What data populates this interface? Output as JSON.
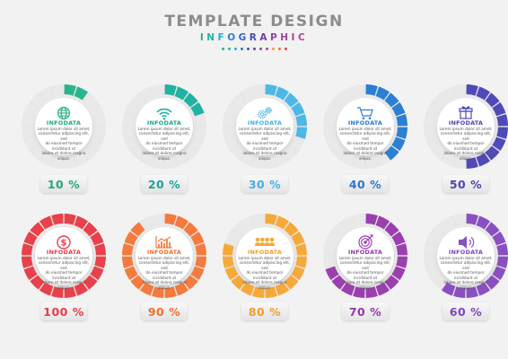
{
  "header": {
    "title": "TEMPLATE DESIGN",
    "subtitle": "INFOGRAPHIC",
    "dots": [
      "#2bb673",
      "#2bb6a8",
      "#29abe2",
      "#2e6fd3",
      "#4a4ab5",
      "#6b3fa0",
      "#8e44ad",
      "#c0399b",
      "#e8a33a",
      "#f26b3a",
      "#e8414b"
    ]
  },
  "items": [
    {
      "id": "globe",
      "icon": "globe-icon",
      "title": "INFODATA",
      "desc": [
        "Lorem ipsum dolor sit amet,",
        "consectetur adipiscing elit, sed",
        "do eiusmod tempor incididunt ut",
        "labore et dolore magna aliqua."
      ],
      "percent_label": "10 %",
      "fraction": 0.1,
      "color": "#2bb58e",
      "text_color": "#25a77e"
    },
    {
      "id": "wifi",
      "icon": "wifi-icon",
      "title": "INFODATA",
      "desc": [
        "Lorem ipsum dolor sit amet,",
        "consectetur adipiscing elit, sed",
        "do eiusmod tempor incididunt ut",
        "labore et dolore magna aliqua."
      ],
      "percent_label": "20 %",
      "fraction": 0.2,
      "color": "#20b2a2",
      "text_color": "#1ea394"
    },
    {
      "id": "gears",
      "icon": "gears-icon",
      "title": "INFODATA",
      "desc": [
        "Lorem ipsum dolor sit amet,",
        "consectetur adipiscing elit, sed",
        "do eiusmod tempor incididunt ut",
        "labore et dolore magna aliqua."
      ],
      "percent_label": "30 %",
      "fraction": 0.3,
      "color": "#4cb8e8",
      "text_color": "#43b0e3"
    },
    {
      "id": "cart",
      "icon": "shopping-cart-icon",
      "title": "INFODATA",
      "desc": [
        "Lorem ipsum dolor sit amet,",
        "consectetur adipiscing elit, sed",
        "do eiusmod tempor incididunt ut",
        "labore et dolore magna aliqua."
      ],
      "percent_label": "40 %",
      "fraction": 0.4,
      "color": "#2d7fd3",
      "text_color": "#2a78cc"
    },
    {
      "id": "gift",
      "icon": "gift-icon",
      "title": "INFODATA",
      "desc": [
        "Lorem ipsum dolor sit amet,",
        "consectetur adipiscing elit, sed",
        "do eiusmod tempor incididunt ut",
        "labore et dolore magna aliqua."
      ],
      "percent_label": "50 %",
      "fraction": 0.5,
      "color": "#4f4ab8",
      "text_color": "#4b46ad"
    },
    {
      "id": "dollar",
      "icon": "dollar-icon",
      "title": "INFODATA",
      "desc": [
        "Lorem ipsum dolor sit amet,",
        "consectetur adipiscing elit, sed",
        "do eiusmod tempor incididunt ut",
        "labore et dolore magna aliqua."
      ],
      "percent_label": "100 %",
      "fraction": 1.0,
      "color": "#e8414b",
      "text_color": "#e23c47"
    },
    {
      "id": "chart",
      "icon": "bar-chart-icon",
      "title": "INFODATA",
      "desc": [
        "Lorem ipsum dolor sit amet,",
        "consectetur adipiscing elit, sed",
        "do eiusmod tempor incididunt ut",
        "labore et dolore magna aliqua."
      ],
      "percent_label": "90 %",
      "fraction": 0.9,
      "color": "#f47a3d",
      "text_color": "#ef6f30"
    },
    {
      "id": "team",
      "icon": "team-icon",
      "title": "INFODATA",
      "desc": [
        "Lorem ipsum dolor sit amet,",
        "consectetur adipiscing elit, sed",
        "do eiusmod tempor incididunt ut",
        "labore et dolore magna aliqua."
      ],
      "percent_label": "80 %",
      "fraction": 0.8,
      "color": "#f5a93a",
      "text_color": "#ef9f2a"
    },
    {
      "id": "target",
      "icon": "target-icon",
      "title": "INFODATA",
      "desc": [
        "Lorem ipsum dolor sit amet,",
        "consectetur adipiscing elit, sed",
        "do eiusmod tempor incididunt ut",
        "labore et dolore magna aliqua."
      ],
      "percent_label": "70 %",
      "fraction": 0.7,
      "color": "#9b3fb0",
      "text_color": "#9637ab"
    },
    {
      "id": "speaker",
      "icon": "speaker-icon",
      "title": "INFODATA",
      "desc": [
        "Lorem ipsum dolor sit amet,",
        "consectetur adipiscing elit, sed",
        "do eiusmod tempor incididunt ut",
        "labore et dolore magna aliqua."
      ],
      "percent_label": "60 %",
      "fraction": 0.6,
      "color": "#8a4fc0",
      "text_color": "#8346b8"
    }
  ]
}
